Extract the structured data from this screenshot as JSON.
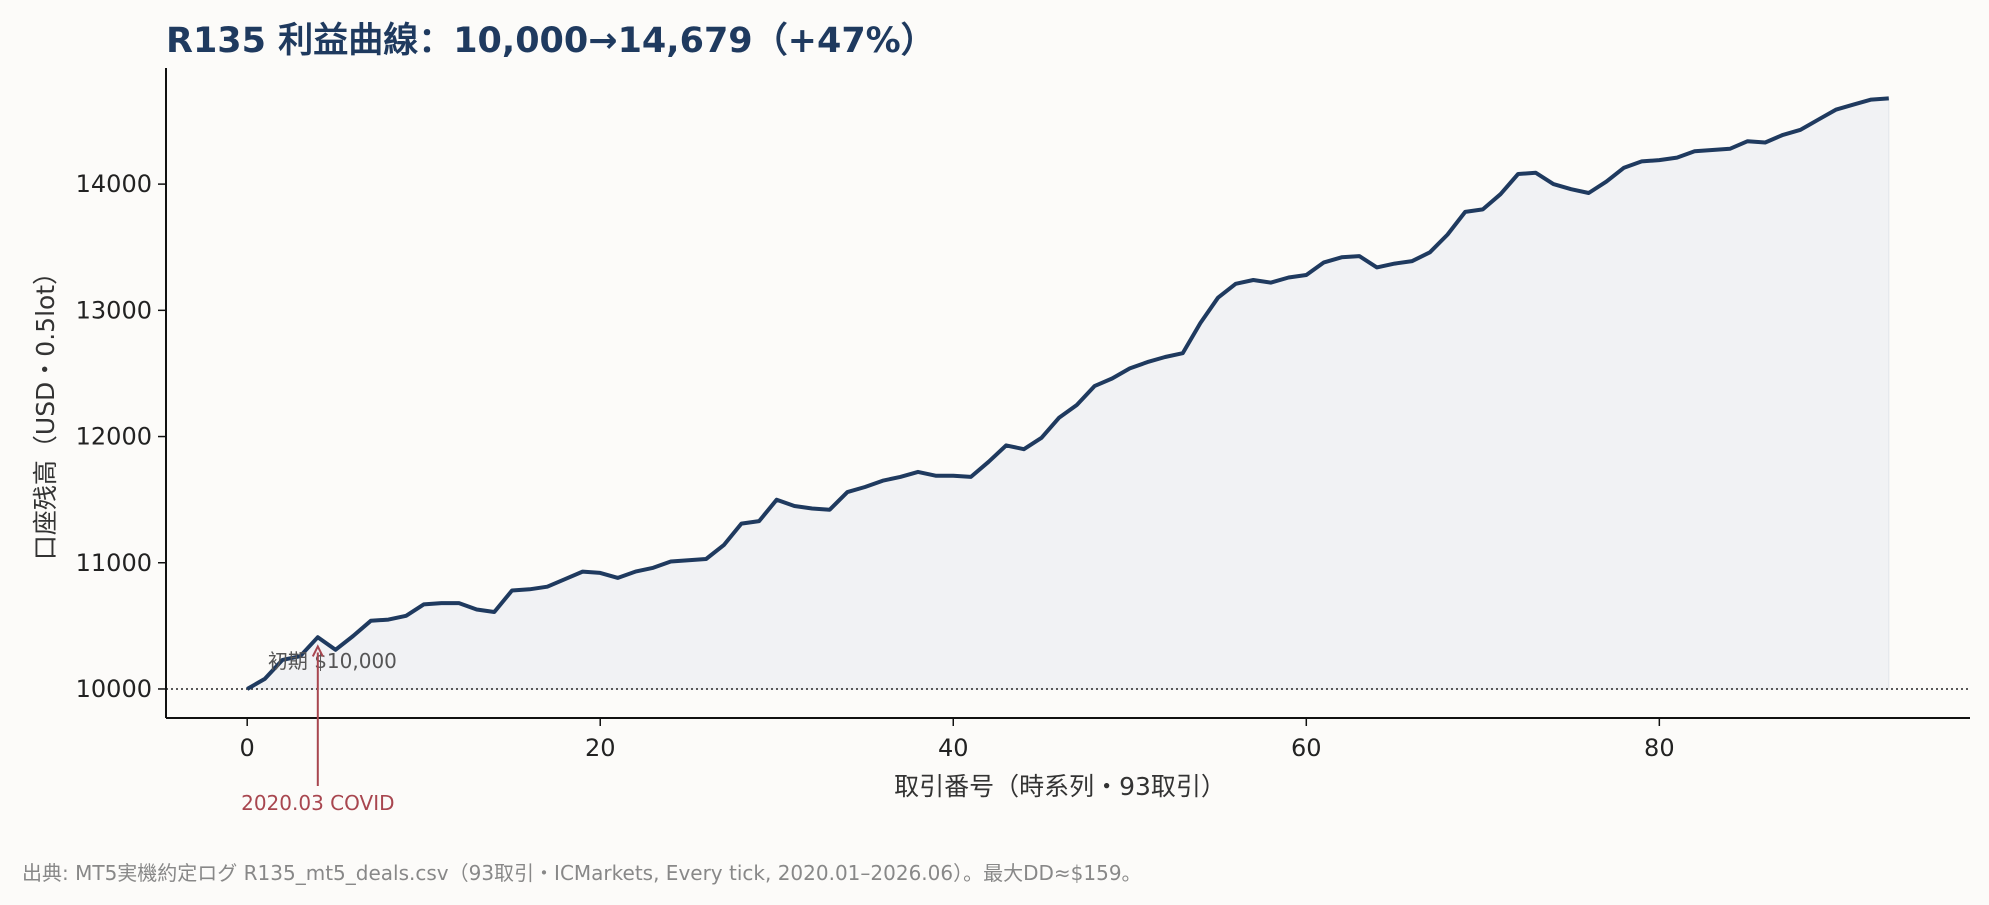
{
  "chart_data": {
    "type": "area",
    "title": "R135 利益曲線：10,000→14,679（+47%）",
    "xlabel": "取引番号（時系列・93取引）",
    "ylabel": "口座残高（USD・0.5lot）",
    "xlim": [
      -4.6,
      97.6
    ],
    "ylim": [
      9770,
      14920
    ],
    "xticks": [
      0,
      20,
      40,
      60,
      80
    ],
    "yticks": [
      10000,
      11000,
      12000,
      13000,
      14000
    ],
    "grid": false,
    "colors": {
      "line": "#1f3a5f",
      "fill": "#f1f2f4",
      "annotation": "#a8464f"
    },
    "baseline": {
      "value": 10000,
      "style": "dotted"
    },
    "annotations": [
      {
        "text": "初期 $10,000",
        "x": 1,
        "y": 10190
      },
      {
        "text": "2020.03 COVID",
        "x": 4,
        "y": 10400
      }
    ],
    "series": [
      {
        "x": [
          0,
          1,
          2,
          3,
          4,
          5,
          6,
          7,
          8,
          9,
          10,
          11,
          12,
          13,
          14,
          15,
          16,
          17,
          18,
          19,
          20,
          21,
          22,
          23,
          24,
          25,
          26,
          27,
          28,
          29,
          30,
          31,
          32,
          33,
          34,
          35,
          36,
          37,
          38,
          39,
          40,
          41,
          42,
          43,
          44,
          45,
          46,
          47,
          48,
          49,
          50,
          51,
          52,
          53,
          54,
          55,
          56,
          57,
          58,
          59,
          60,
          61,
          62,
          63,
          64,
          65,
          66,
          67,
          68,
          69,
          70,
          71,
          72,
          73,
          74,
          75,
          76,
          77,
          78,
          79,
          80,
          81,
          82,
          83,
          84,
          85,
          86,
          87,
          88,
          89,
          90,
          91,
          92,
          93
        ],
        "values": [
          10000,
          10080,
          10230,
          10260,
          10410,
          10310,
          10420,
          10540,
          10550,
          10580,
          10670,
          10680,
          10680,
          10630,
          10610,
          10780,
          10790,
          10810,
          10870,
          10930,
          10920,
          10880,
          10930,
          10960,
          11010,
          11020,
          11030,
          11140,
          11310,
          11330,
          11500,
          11450,
          11430,
          11420,
          11560,
          11600,
          11650,
          11680,
          11720,
          11690,
          11690,
          11680,
          11800,
          11930,
          11900,
          11990,
          12150,
          12250,
          12400,
          12460,
          12540,
          12590,
          12630,
          12660,
          12900,
          13100,
          13210,
          13240,
          13220,
          13260,
          13280,
          13380,
          13420,
          13430,
          13340,
          13370,
          13390,
          13460,
          13600,
          13780,
          13800,
          13920,
          14080,
          14090,
          14000,
          13960,
          13930,
          14020,
          14130,
          14180,
          14190,
          14210,
          14260,
          14270,
          14280,
          14340,
          14330,
          14390,
          14430,
          14510,
          14590,
          14630,
          14670,
          14679
        ]
      }
    ]
  },
  "source_note": "出典: MT5実機約定ログ R135_mt5_deals.csv（93取引・ICMarkets, Every tick, 2020.01–2026.06）。最大DD≈$159。"
}
